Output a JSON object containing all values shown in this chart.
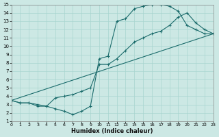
{
  "xlabel": "Humidex (Indice chaleur)",
  "xlim": [
    0,
    23
  ],
  "ylim": [
    1,
    15
  ],
  "xticks": [
    0,
    1,
    2,
    3,
    4,
    5,
    6,
    7,
    8,
    9,
    10,
    11,
    12,
    13,
    14,
    15,
    16,
    17,
    18,
    19,
    20,
    21,
    22,
    23
  ],
  "yticks": [
    1,
    2,
    3,
    4,
    5,
    6,
    7,
    8,
    9,
    10,
    11,
    12,
    13,
    14,
    15
  ],
  "bg_color": "#cce8e4",
  "grid_color": "#a8d4cf",
  "line_color": "#1a6b6b",
  "curve1_x": [
    0,
    1,
    2,
    3,
    4,
    5,
    6,
    7,
    8,
    9,
    10,
    11,
    12,
    13,
    14,
    15,
    16,
    17,
    18,
    19,
    20,
    21,
    22,
    23
  ],
  "curve1_y": [
    3.5,
    3.2,
    3.2,
    3.0,
    2.8,
    2.5,
    2.2,
    1.8,
    2.2,
    2.8,
    8.5,
    8.8,
    13.0,
    13.3,
    14.5,
    14.8,
    15.0,
    15.0,
    14.8,
    14.2,
    12.5,
    12.0,
    11.5,
    11.5
  ],
  "curve2_x": [
    0,
    1,
    2,
    3,
    4,
    5,
    6,
    7,
    8,
    9,
    10,
    11,
    12,
    13,
    14,
    15,
    16,
    17,
    18,
    19,
    20,
    21,
    22,
    23
  ],
  "curve2_y": [
    3.5,
    3.2,
    3.2,
    2.8,
    2.8,
    3.8,
    4.0,
    4.2,
    4.6,
    5.0,
    7.8,
    7.8,
    8.5,
    9.5,
    10.5,
    11.0,
    11.5,
    11.8,
    12.5,
    13.5,
    14.0,
    12.8,
    12.0,
    11.5
  ],
  "curve3_x": [
    0,
    23
  ],
  "curve3_y": [
    3.5,
    11.5
  ]
}
